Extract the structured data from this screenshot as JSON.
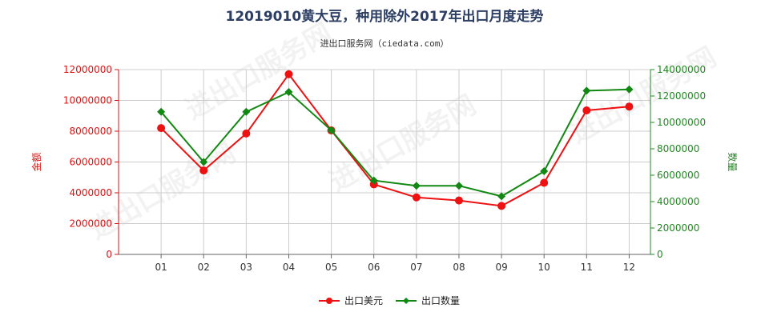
{
  "chart_data": {
    "type": "line",
    "title": "12019010黄大豆，种用除外2017年出口月度走势",
    "subtitle": "进出口服务网（ciedata.com）",
    "watermark": "进出口服务网",
    "categories": [
      "01",
      "02",
      "03",
      "04",
      "05",
      "06",
      "07",
      "08",
      "09",
      "10",
      "11",
      "12"
    ],
    "y_left": {
      "label": "金额",
      "ticks": [
        "0",
        "2000000",
        "4000000",
        "6000000",
        "8000000",
        "10000000",
        "12000000"
      ],
      "range": [
        0,
        12000000
      ],
      "color": "#dd1111"
    },
    "y_right": {
      "label": "数量",
      "ticks": [
        "0",
        "2000000",
        "4000000",
        "6000000",
        "8000000",
        "10000000",
        "12000000",
        "14000000"
      ],
      "range": [
        0,
        14000000
      ],
      "color": "#228822"
    },
    "series": [
      {
        "name": "出口美元",
        "axis": "left",
        "color": "#ee1111",
        "marker": "circle",
        "values": [
          8200000,
          5450000,
          7850000,
          11700000,
          8050000,
          4550000,
          3700000,
          3500000,
          3150000,
          4650000,
          9350000,
          9600000
        ]
      },
      {
        "name": "出口数量",
        "axis": "right",
        "color": "#118811",
        "marker": "diamond",
        "values": [
          10800000,
          7000000,
          10800000,
          12300000,
          9400000,
          5600000,
          5200000,
          5200000,
          4400000,
          6300000,
          12400000,
          12500000
        ]
      }
    ],
    "grid": true,
    "legend": "bottom-center"
  }
}
